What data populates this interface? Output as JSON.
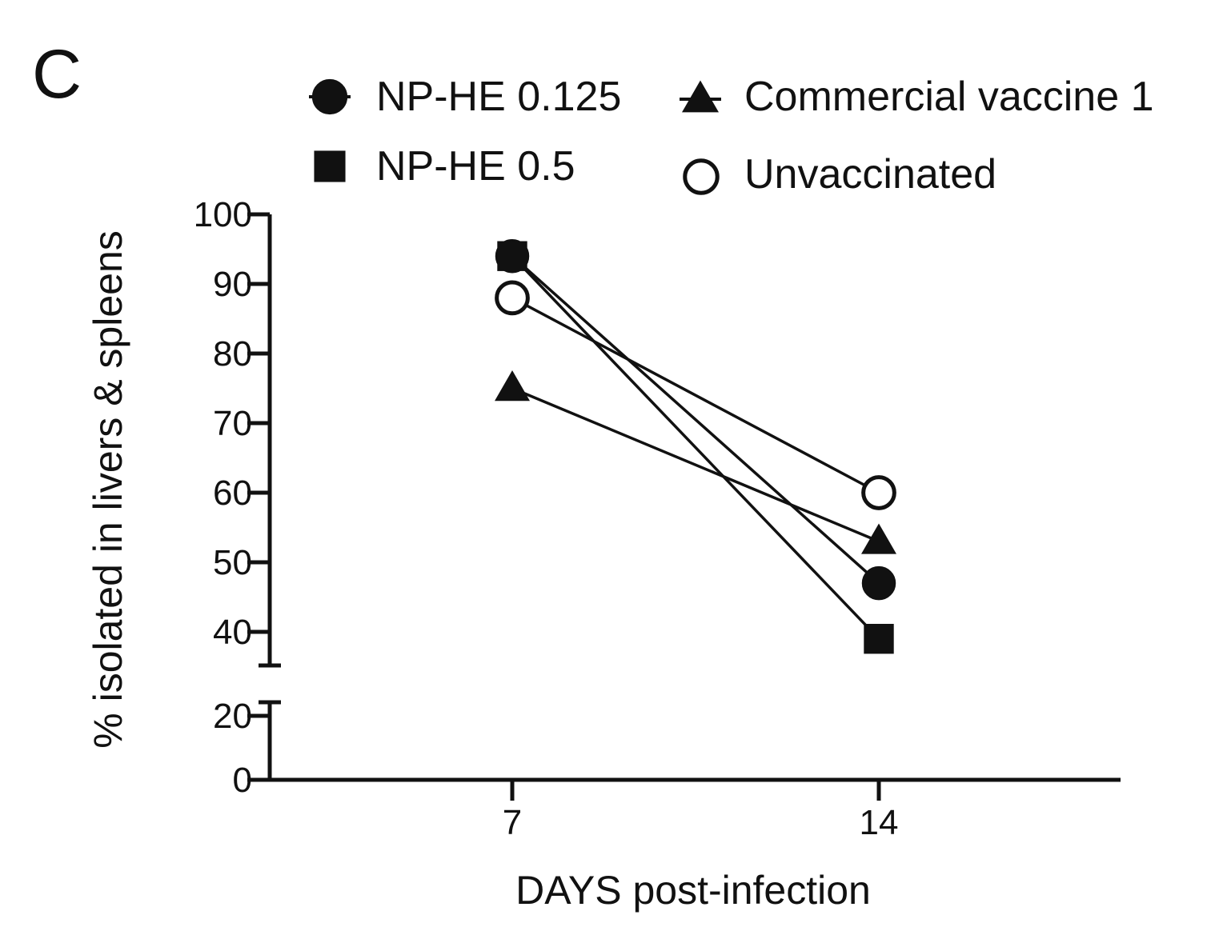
{
  "panel_label": "C",
  "chart_data": {
    "type": "line",
    "x": [
      7,
      14
    ],
    "xlabel": "DAYS post-infection",
    "ylabel": "% isolated in livers & spleens",
    "x_tick_labels": [
      "7",
      "14"
    ],
    "y_ticks_lower": [
      "0",
      "20"
    ],
    "y_ticks_upper": [
      "40",
      "50",
      "60",
      "70",
      "80",
      "90",
      "100"
    ],
    "y_axis_break": [
      20,
      40
    ],
    "legend_position": "top",
    "series": [
      {
        "name": "NP-HE 0.125",
        "marker": "filled-circle",
        "values": [
          94,
          47
        ]
      },
      {
        "name": "NP-HE 0.5",
        "marker": "filled-square",
        "values": [
          94,
          39
        ]
      },
      {
        "name": "Commercial vaccine 1",
        "marker": "filled-triangle",
        "values": [
          75,
          53
        ]
      },
      {
        "name": "Unvaccinated",
        "marker": "open-circle",
        "values": [
          88,
          60
        ]
      }
    ]
  }
}
